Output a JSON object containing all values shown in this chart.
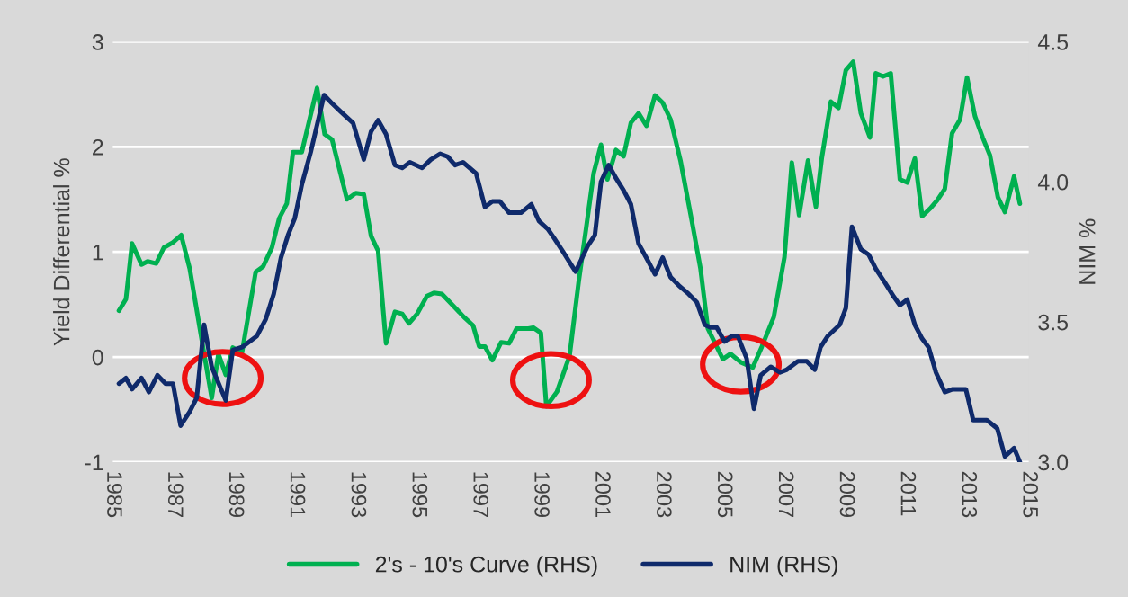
{
  "chart_data": {
    "type": "line",
    "ylabel": "Yield Differential %",
    "y2label": "NIM %",
    "xlim": [
      1985,
      2015
    ],
    "xticks": [
      {
        "value": 1985,
        "label": "1985"
      },
      {
        "value": 1987,
        "label": "1987"
      },
      {
        "value": 1989,
        "label": "1989"
      },
      {
        "value": 1991,
        "label": "1991"
      },
      {
        "value": 1993,
        "label": "1993"
      },
      {
        "value": 1995,
        "label": "1995"
      },
      {
        "value": 1997,
        "label": "1997"
      },
      {
        "value": 1999,
        "label": "1999"
      },
      {
        "value": 2001,
        "label": "2001"
      },
      {
        "value": 2003,
        "label": "2003"
      },
      {
        "value": 2005,
        "label": "2005"
      },
      {
        "value": 2007,
        "label": "2007"
      },
      {
        "value": 2009,
        "label": "2009"
      },
      {
        "value": 2011,
        "label": "2011"
      },
      {
        "value": 2013,
        "label": "2013"
      },
      {
        "value": 2015,
        "label": "2015"
      }
    ],
    "ylim": [
      -1,
      3
    ],
    "yticks": [
      -1,
      0,
      1,
      2,
      3
    ],
    "y2lim": [
      3,
      4.5
    ],
    "y2ticks": [
      {
        "value": 3,
        "label": "3.0"
      },
      {
        "value": 3.5,
        "label": "3.5"
      },
      {
        "value": 4,
        "label": "4.0"
      },
      {
        "value": 4.5,
        "label": "4.5"
      }
    ],
    "grid": "y",
    "legend": "bottom",
    "series": [
      {
        "name": "2's - 10's Curve (RHS)",
        "color": "#00b050",
        "x": [
          1985.2,
          1985.43,
          1985.63,
          1985.94,
          1986.14,
          1986.42,
          1986.67,
          1986.97,
          1987.24,
          1987.52,
          1987.95,
          1988.24,
          1988.46,
          1988.7,
          1988.93,
          1989.23,
          1989.68,
          1989.92,
          1990.21,
          1990.45,
          1990.7,
          1990.9,
          1991.19,
          1991.69,
          1991.94,
          1992.18,
          1992.67,
          1992.96,
          1993.22,
          1993.46,
          1993.69,
          1993.95,
          1994.24,
          1994.48,
          1994.7,
          1994.97,
          1995.29,
          1995.52,
          1995.78,
          1996.21,
          1996.5,
          1996.8,
          1997.0,
          1997.19,
          1997.43,
          1997.72,
          1997.98,
          1998.22,
          1998.61,
          1998.77,
          1999.02,
          1999.2,
          1999.55,
          1999.96,
          2000.26,
          2000.51,
          2000.75,
          2000.99,
          2001.2,
          2001.48,
          2001.73,
          2001.97,
          2002.22,
          2002.48,
          2002.76,
          2003.01,
          2003.27,
          2003.6,
          2004.0,
          2004.25,
          2004.49,
          2004.98,
          2005.23,
          2005.57,
          2005.96,
          2006.26,
          2006.65,
          2007.0,
          2007.24,
          2007.48,
          2007.77,
          2008.03,
          2008.22,
          2008.52,
          2008.77,
          2009.01,
          2009.25,
          2009.5,
          2009.8,
          2009.99,
          2010.23,
          2010.48,
          2010.78,
          2011.02,
          2011.27,
          2011.51,
          2011.76,
          2012.0,
          2012.25,
          2012.49,
          2012.75,
          2012.98,
          2013.24,
          2013.49,
          2013.73,
          2013.99,
          2014.22,
          2014.52,
          2014.71
        ],
        "values": [
          0.44,
          0.55,
          1.08,
          0.88,
          0.91,
          0.89,
          1.04,
          1.09,
          1.16,
          0.84,
          0.1,
          -0.39,
          0.03,
          -0.17,
          0.09,
          0.04,
          0.81,
          0.86,
          1.04,
          1.32,
          1.46,
          1.95,
          1.95,
          2.56,
          2.12,
          2.07,
          1.5,
          1.56,
          1.55,
          1.15,
          1.01,
          0.13,
          0.43,
          0.41,
          0.32,
          0.41,
          0.58,
          0.61,
          0.6,
          0.47,
          0.38,
          0.3,
          0.1,
          0.1,
          -0.03,
          0.14,
          0.13,
          0.27,
          0.27,
          0.28,
          0.23,
          -0.47,
          -0.33,
          0.01,
          0.72,
          1.24,
          1.75,
          2.02,
          1.69,
          1.97,
          1.91,
          2.23,
          2.32,
          2.2,
          2.49,
          2.42,
          2.26,
          1.86,
          1.24,
          0.84,
          0.27,
          -0.02,
          0.03,
          -0.05,
          -0.1,
          0.1,
          0.38,
          0.95,
          1.85,
          1.35,
          1.87,
          1.43,
          1.89,
          2.43,
          2.37,
          2.73,
          2.81,
          2.32,
          2.09,
          2.7,
          2.67,
          2.7,
          1.69,
          1.66,
          1.89,
          1.34,
          1.41,
          1.49,
          1.6,
          2.13,
          2.26,
          2.66,
          2.29,
          2.09,
          1.92,
          1.52,
          1.38,
          1.72,
          1.46
        ]
      },
      {
        "name": "NIM (RHS)",
        "color": "#0f2a6b",
        "axis": "y2",
        "x": [
          1985.2,
          1985.43,
          1985.63,
          1985.94,
          1986.18,
          1986.46,
          1986.73,
          1986.97,
          1987.22,
          1987.52,
          1987.75,
          1987.99,
          1988.24,
          1988.7,
          1988.93,
          1989.23,
          1989.72,
          1990.01,
          1990.27,
          1990.51,
          1990.74,
          1990.96,
          1991.19,
          1991.49,
          1991.92,
          1992.18,
          1992.47,
          1992.87,
          1993.22,
          1993.46,
          1993.69,
          1993.95,
          1994.24,
          1994.48,
          1994.73,
          1995.13,
          1995.42,
          1995.72,
          1995.97,
          1996.21,
          1996.47,
          1996.9,
          1997.19,
          1997.43,
          1997.68,
          1997.98,
          1998.37,
          1998.71,
          1998.96,
          1999.26,
          1999.45,
          1999.75,
          2000.04,
          2000.16,
          2000.55,
          2000.79,
          2000.99,
          2001.24,
          2001.5,
          2001.73,
          2001.97,
          2002.22,
          2002.52,
          2002.76,
          2003.01,
          2003.27,
          2003.54,
          2003.86,
          2004.13,
          2004.39,
          2004.58,
          2004.78,
          2005.04,
          2005.27,
          2005.47,
          2005.76,
          2006.0,
          2006.22,
          2006.55,
          2006.85,
          2007.08,
          2007.44,
          2007.73,
          2007.99,
          2008.18,
          2008.42,
          2008.81,
          2009.01,
          2009.21,
          2009.5,
          2009.76,
          2009.99,
          2010.29,
          2010.58,
          2010.78,
          2011.02,
          2011.27,
          2011.51,
          2011.72,
          2011.96,
          2012.25,
          2012.51,
          2012.94,
          2013.18,
          2013.63,
          2013.97,
          2014.22,
          2014.52,
          2014.71
        ],
        "values": [
          3.28,
          3.3,
          3.26,
          3.3,
          3.25,
          3.31,
          3.28,
          3.28,
          3.13,
          3.18,
          3.23,
          3.49,
          3.34,
          3.22,
          3.4,
          3.41,
          3.45,
          3.51,
          3.6,
          3.73,
          3.81,
          3.87,
          3.99,
          4.11,
          4.31,
          4.28,
          4.25,
          4.21,
          4.08,
          4.18,
          4.22,
          4.17,
          4.06,
          4.05,
          4.07,
          4.05,
          4.08,
          4.1,
          4.09,
          4.06,
          4.07,
          4.03,
          3.91,
          3.93,
          3.93,
          3.89,
          3.89,
          3.92,
          3.86,
          3.83,
          3.8,
          3.75,
          3.7,
          3.68,
          3.77,
          3.81,
          4.0,
          4.06,
          4.01,
          3.97,
          3.92,
          3.78,
          3.72,
          3.67,
          3.73,
          3.66,
          3.63,
          3.6,
          3.57,
          3.49,
          3.48,
          3.48,
          3.43,
          3.45,
          3.45,
          3.37,
          3.19,
          3.31,
          3.34,
          3.32,
          3.33,
          3.36,
          3.36,
          3.33,
          3.41,
          3.45,
          3.49,
          3.55,
          3.84,
          3.76,
          3.74,
          3.69,
          3.64,
          3.59,
          3.56,
          3.58,
          3.49,
          3.44,
          3.41,
          3.32,
          3.25,
          3.26,
          3.26,
          3.15,
          3.15,
          3.12,
          3.02,
          3.05,
          3.0
        ]
      }
    ]
  }
}
